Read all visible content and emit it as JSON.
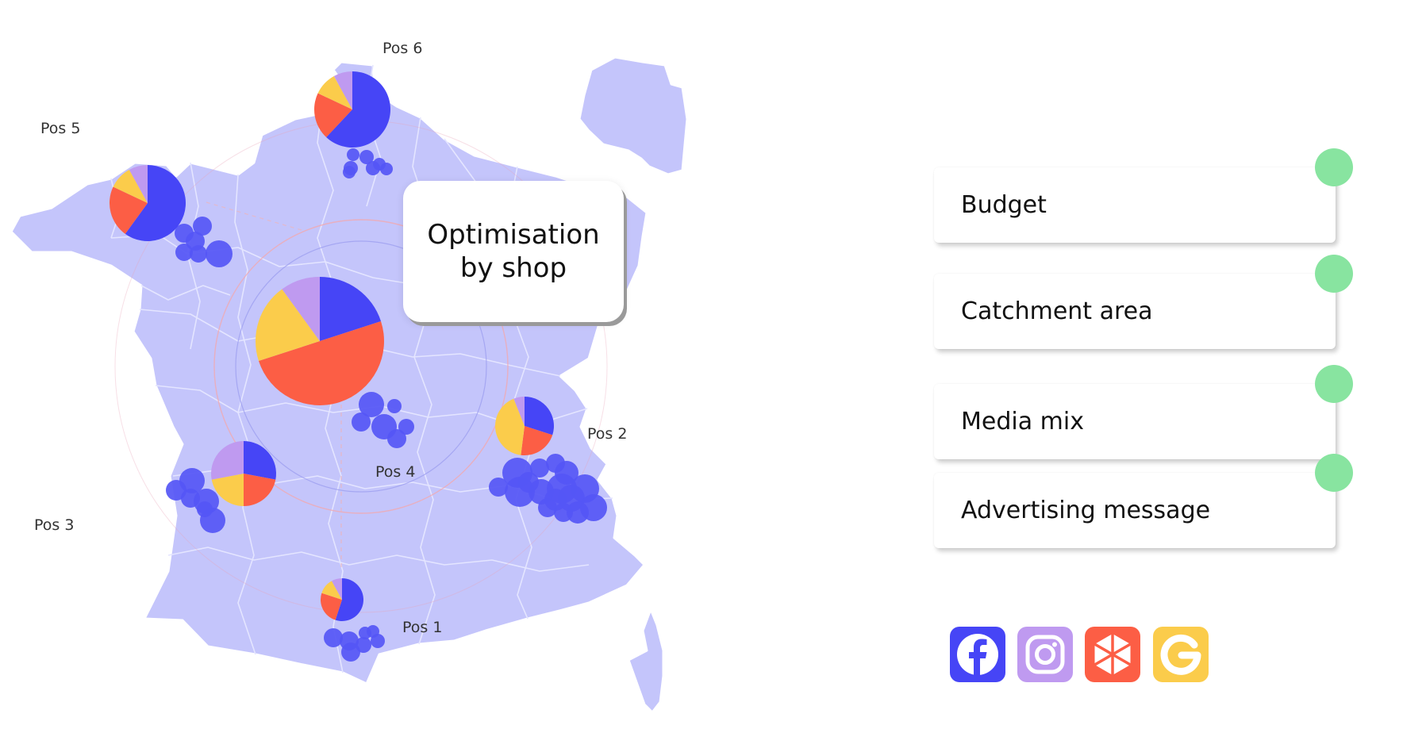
{
  "map": {
    "country_fill": "#c4c5fb",
    "boundary_color": "#e4e5ff",
    "positions": [
      {
        "label": "Pos 6",
        "shares": [
          0.62,
          0.2,
          0.1,
          0.08
        ]
      },
      {
        "label": "Pos 5",
        "shares": [
          0.6,
          0.22,
          0.1,
          0.08
        ]
      },
      {
        "label": "Pos 4",
        "shares": [
          0.2,
          0.5,
          0.2,
          0.1
        ]
      },
      {
        "label": "Pos 3",
        "shares": [
          0.28,
          0.22,
          0.22,
          0.28
        ]
      },
      {
        "label": "Pos 2",
        "shares": [
          0.3,
          0.22,
          0.42,
          0.06
        ]
      },
      {
        "label": "Pos 1",
        "shares": [
          0.55,
          0.25,
          0.12,
          0.08
        ]
      }
    ],
    "pie_order": [
      "facebook",
      "youtube",
      "google",
      "instagram"
    ],
    "colors": {
      "facebook": "#4645f6",
      "youtube": "#fc5e45",
      "google": "#fbcc4b",
      "instagram": "#bf9af0",
      "catchment_bubble": "#5556f5"
    }
  },
  "callout": {
    "title": "Optimisation by shop"
  },
  "criteria": [
    {
      "label": "Budget"
    },
    {
      "label": "Catchment area"
    },
    {
      "label": "Media mix"
    },
    {
      "label": "Advertising message"
    }
  ],
  "socials": [
    {
      "name": "facebook-icon",
      "color": "#4645f6"
    },
    {
      "name": "instagram-icon",
      "color": "#bf9af0"
    },
    {
      "name": "media-network-icon",
      "color": "#fc5e45"
    },
    {
      "name": "google-icon",
      "color": "#fbcc4b"
    }
  ]
}
